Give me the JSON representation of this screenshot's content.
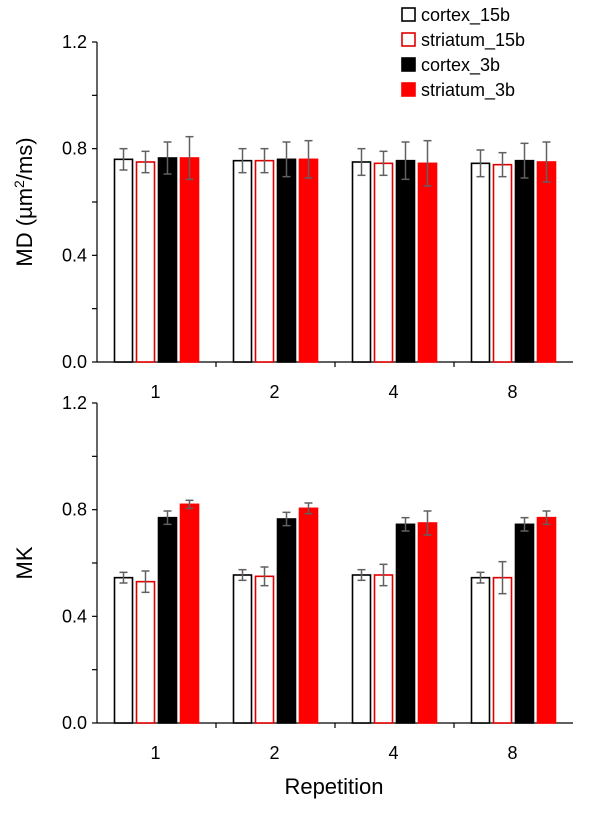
{
  "chart_data": [
    {
      "type": "bar",
      "panel": "top",
      "ylabel": "MD (µm²/ms)",
      "ylabel_main": "MD (µm",
      "ylabel_sup": "2",
      "ylabel_tail": "/ms)",
      "xlabel": "",
      "ylim": [
        0,
        1.2
      ],
      "yticks": [
        "0.0",
        "0.4",
        "0.8",
        "1.2"
      ],
      "categories": [
        "1",
        "2",
        "4",
        "8"
      ],
      "series": [
        {
          "name": "cortex_15b",
          "values": [
            0.76,
            0.755,
            0.75,
            0.745
          ],
          "errors": [
            0.04,
            0.045,
            0.05,
            0.05
          ]
        },
        {
          "name": "striatum_15b",
          "values": [
            0.75,
            0.755,
            0.745,
            0.74
          ],
          "errors": [
            0.04,
            0.045,
            0.045,
            0.045
          ]
        },
        {
          "name": "cortex_3b",
          "values": [
            0.765,
            0.76,
            0.755,
            0.755
          ],
          "errors": [
            0.06,
            0.065,
            0.07,
            0.065
          ]
        },
        {
          "name": "striatum_3b",
          "values": [
            0.765,
            0.76,
            0.745,
            0.75
          ],
          "errors": [
            0.08,
            0.07,
            0.085,
            0.075
          ]
        }
      ]
    },
    {
      "type": "bar",
      "panel": "bottom",
      "ylabel": "MK",
      "xlabel": "Repetition",
      "ylim": [
        0,
        1.2
      ],
      "yticks": [
        "0.0",
        "0.4",
        "0.8",
        "1.2"
      ],
      "categories": [
        "1",
        "2",
        "4",
        "8"
      ],
      "series": [
        {
          "name": "cortex_15b",
          "values": [
            0.545,
            0.555,
            0.555,
            0.545
          ],
          "errors": [
            0.02,
            0.02,
            0.02,
            0.02
          ]
        },
        {
          "name": "striatum_15b",
          "values": [
            0.53,
            0.55,
            0.555,
            0.545
          ],
          "errors": [
            0.04,
            0.035,
            0.04,
            0.06
          ]
        },
        {
          "name": "cortex_3b",
          "values": [
            0.77,
            0.765,
            0.745,
            0.745
          ],
          "errors": [
            0.025,
            0.025,
            0.025,
            0.025
          ]
        },
        {
          "name": "striatum_3b",
          "values": [
            0.82,
            0.805,
            0.75,
            0.77
          ],
          "errors": [
            0.015,
            0.02,
            0.045,
            0.025
          ]
        }
      ]
    }
  ],
  "legend": [
    {
      "name": "cortex_15b",
      "fill": "#ffffff",
      "stroke": "#000000"
    },
    {
      "name": "striatum_15b",
      "fill": "#ffffff",
      "stroke": "#e00000"
    },
    {
      "name": "cortex_3b",
      "fill": "#000000",
      "stroke": "#000000"
    },
    {
      "name": "striatum_3b",
      "fill": "#ff0000",
      "stroke": "#ff0000"
    }
  ],
  "colors": {
    "black": "#000000",
    "red": "#ff0000",
    "red_outline": "#e00000",
    "error_bar": "#606060"
  }
}
